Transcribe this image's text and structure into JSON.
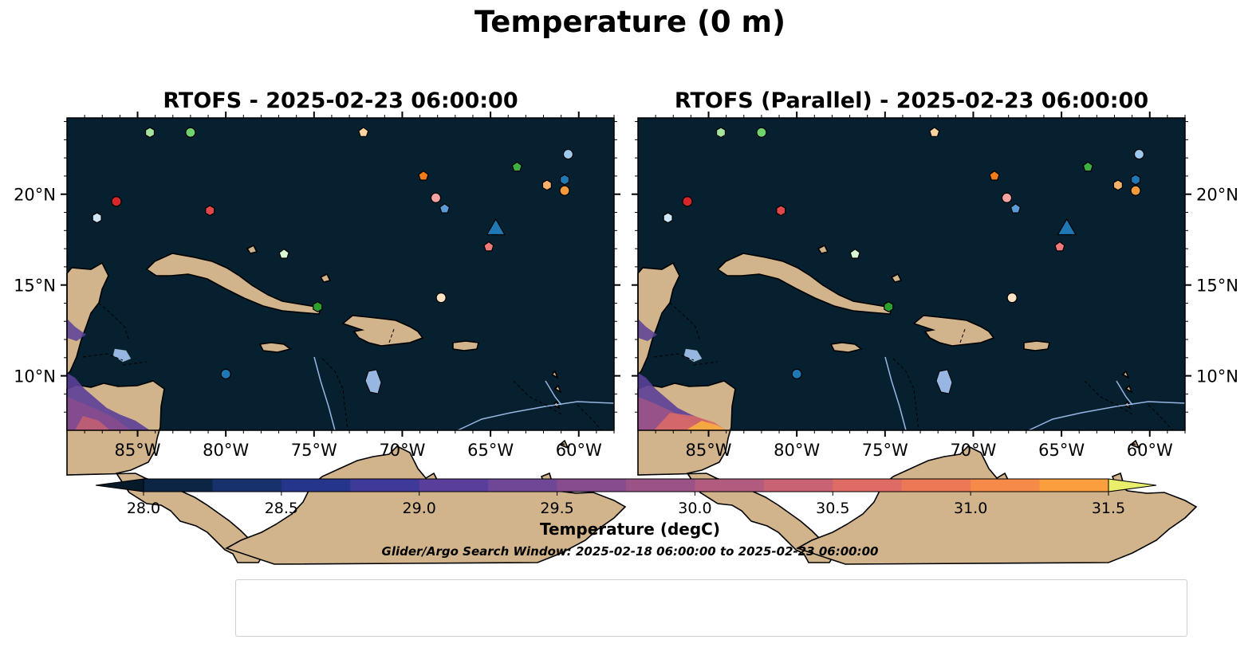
{
  "title": "Temperature (0 m)",
  "panels": [
    {
      "title": "RTOFS - 2025-02-23 06:00:00"
    },
    {
      "title": "RTOFS (Parallel) - 2025-02-23 06:00:00"
    }
  ],
  "map_extent": {
    "lon_min": -89,
    "lon_max": -58,
    "lat_min": 7,
    "lat_max": 24.2
  },
  "lon_ticks": [
    "85°W",
    "80°W",
    "75°W",
    "70°W",
    "65°W",
    "60°W"
  ],
  "lat_ticks": [
    "20°N",
    "15°N",
    "10°N"
  ],
  "colors": {
    "ocean": "#062030",
    "land": "#d2b48c",
    "lakes": "#97b6e1",
    "rivers": "#97b6e1",
    "border": "#000000"
  },
  "colorbar": {
    "label": "Temperature (degC)",
    "min": 28.0,
    "max": 31.5,
    "step": 0.25,
    "ticks": [
      "28.0",
      "28.5",
      "29.0",
      "29.5",
      "30.0",
      "30.5",
      "31.0",
      "31.5"
    ],
    "colors": [
      "#0c2545",
      "#16316b",
      "#25358b",
      "#3f3a99",
      "#593f9b",
      "#6f4797",
      "#864c8e",
      "#9b5387",
      "#b25b7f",
      "#c96273",
      "#de6b64",
      "#ec7856",
      "#f68a48",
      "#fa9e3e",
      "#fbb43a",
      "#f5cd47",
      "#e9ef6a"
    ],
    "under_color": "#061a2a",
    "over_color": "#e9ef6a"
  },
  "search_window": "Glider/Argo Search Window: 2025-02-18 06:00:00 to 2025-02-23 06:00:00",
  "floats": [
    {
      "id": "1902521",
      "marker": "circle",
      "color": "#1f77b4",
      "lon": -80.0,
      "lat": 10.1
    },
    {
      "id": "3901686",
      "marker": "hexagon",
      "color": "#1f77b4",
      "lon": -60.8,
      "lat": 20.8
    },
    {
      "id": "4902534",
      "marker": "pentagon",
      "color": "#5b9bd5",
      "lon": -67.6,
      "lat": 19.2
    },
    {
      "id": "4903244",
      "marker": "circle",
      "color": "#9ec8ee",
      "lon": -60.6,
      "lat": 22.2
    },
    {
      "id": "4903250",
      "marker": "hexagon",
      "color": "#cfe6fa",
      "lon": -87.3,
      "lat": 18.7
    },
    {
      "id": "4903276",
      "marker": "pentagon",
      "color": "#f07d1a",
      "lon": -68.8,
      "lat": 21.0
    },
    {
      "id": "4903333",
      "marker": "circle",
      "color": "#f39a3c",
      "lon": -60.8,
      "lat": 20.2
    },
    {
      "id": "4903345",
      "marker": "hexagon",
      "color": "#f5b26b",
      "lon": -61.8,
      "lat": 20.5
    },
    {
      "id": "4903348",
      "marker": "pentagon",
      "color": "#fbd3a0",
      "lon": -72.2,
      "lat": 23.4
    },
    {
      "id": "4903349",
      "marker": "circle",
      "color": "#fde3c3",
      "lon": -67.8,
      "lat": 14.3
    },
    {
      "id": "4903350",
      "marker": "hexagon",
      "color": "#2ca02c",
      "lon": -74.8,
      "lat": 13.8
    },
    {
      "id": "4903352",
      "marker": "pentagon",
      "color": "#3cb043",
      "lon": -63.5,
      "lat": 21.5
    },
    {
      "id": "4903354",
      "marker": "circle",
      "color": "#6fd36f",
      "lon": -82.0,
      "lat": 23.4
    },
    {
      "id": "4903554",
      "marker": "hexagon",
      "color": "#a5e3a0",
      "lon": -84.3,
      "lat": 23.4
    },
    {
      "id": "4903558",
      "marker": "pentagon",
      "color": "#d9f7d3",
      "lon": -76.7,
      "lat": 16.7
    },
    {
      "id": "4903562",
      "marker": "circle",
      "color": "#d62728",
      "lon": -86.2,
      "lat": 19.6
    },
    {
      "id": "4903563",
      "marker": "hexagon",
      "color": "#e0474b",
      "lon": -80.9,
      "lat": 19.1
    },
    {
      "id": "6903111",
      "marker": "pentagon",
      "color": "#f07878",
      "lon": -65.1,
      "lat": 17.1
    },
    {
      "id": "6903727",
      "marker": "circle",
      "color": "#f5a3a0",
      "lon": -68.1,
      "lat": 19.8
    }
  ],
  "glider": {
    "id": "uvi_02-20250211T1347",
    "marker": "triangle",
    "color": "#1f77b4",
    "lon": -64.7,
    "lat": 18.2
  }
}
